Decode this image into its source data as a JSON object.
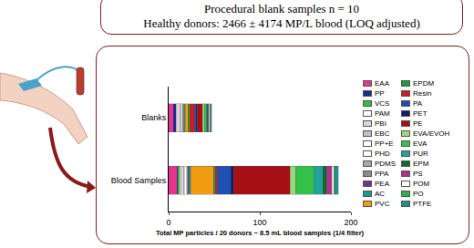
{
  "chart_data": {
    "type": "bar",
    "orientation": "horizontal",
    "stacked": true,
    "annotations": [
      "Procedural blank samples n = 10",
      "Healthy donors: 2466 ± 4174 MP/L blood (LOQ adjusted)"
    ],
    "x_label": "Total MP particles / 20 donors ~ 8.5 mL blood samples (1/4 filter)",
    "categories": [
      "Blanks",
      "Blood Samples"
    ],
    "xlim": [
      0,
      200
    ],
    "xticks": [
      0,
      100,
      200
    ],
    "grid": false,
    "legend": "right",
    "series": [
      {
        "name": "EAA",
        "color": "#e8338f",
        "values": [
          5,
          9
        ]
      },
      {
        "name": "PP",
        "color": "#1a2d8f",
        "values": [
          3,
          1
        ]
      },
      {
        "name": "VCS",
        "color": "#2ec23c",
        "values": [
          0,
          2
        ]
      },
      {
        "name": "PAM",
        "color": "#ffffff",
        "values": [
          0,
          1
        ]
      },
      {
        "name": "PBI",
        "color": "#d9d9d9",
        "values": [
          4,
          3
        ]
      },
      {
        "name": "EBC",
        "color": "#c0c0c0",
        "values": [
          1,
          1
        ]
      },
      {
        "name": "PP+E",
        "color": "#ffffff",
        "values": [
          1,
          2
        ]
      },
      {
        "name": "PHD",
        "color": "#ffffff",
        "values": [
          1,
          1
        ]
      },
      {
        "name": "PDMS",
        "color": "#a6a6a6",
        "values": [
          1,
          1
        ]
      },
      {
        "name": "PPA",
        "color": "#8c8c8c",
        "values": [
          1,
          0
        ]
      },
      {
        "name": "PEA",
        "color": "#7b2d8e",
        "values": [
          0,
          1
        ]
      },
      {
        "name": "AC",
        "color": "#1a9a8a",
        "values": [
          1,
          2
        ]
      },
      {
        "name": "PVC",
        "color": "#f39c12",
        "values": [
          3,
          25
        ]
      },
      {
        "name": "EPDM",
        "color": "#1b9e3a",
        "values": [
          2,
          2
        ]
      },
      {
        "name": "Resin",
        "color": "#d7191c",
        "values": [
          5,
          2
        ]
      },
      {
        "name": "PA",
        "color": "#1f4fb3",
        "values": [
          2,
          15
        ]
      },
      {
        "name": "PET",
        "color": "#0d1e6b",
        "values": [
          1,
          3
        ]
      },
      {
        "name": "PE",
        "color": "#a50f15",
        "values": [
          6,
          62
        ]
      },
      {
        "name": "EVA/EVOH",
        "color": "#9bd77a",
        "values": [
          2,
          6
        ]
      },
      {
        "name": "EVA",
        "color": "#35c04a",
        "values": [
          2,
          20
        ]
      },
      {
        "name": "PUR",
        "color": "#22a39a",
        "values": [
          1,
          10
        ]
      },
      {
        "name": "EPM",
        "color": "#0b6b2c",
        "values": [
          1,
          4
        ]
      },
      {
        "name": "PS",
        "color": "#b0308a",
        "values": [
          1,
          6
        ]
      },
      {
        "name": "POM",
        "color": "#ffffff",
        "values": [
          1,
          2
        ]
      },
      {
        "name": "PO",
        "color": "#2db34a",
        "values": [
          1,
          1
        ]
      },
      {
        "name": "PTFE",
        "color": "#1f8f8f",
        "values": [
          1,
          4
        ]
      }
    ]
  }
}
